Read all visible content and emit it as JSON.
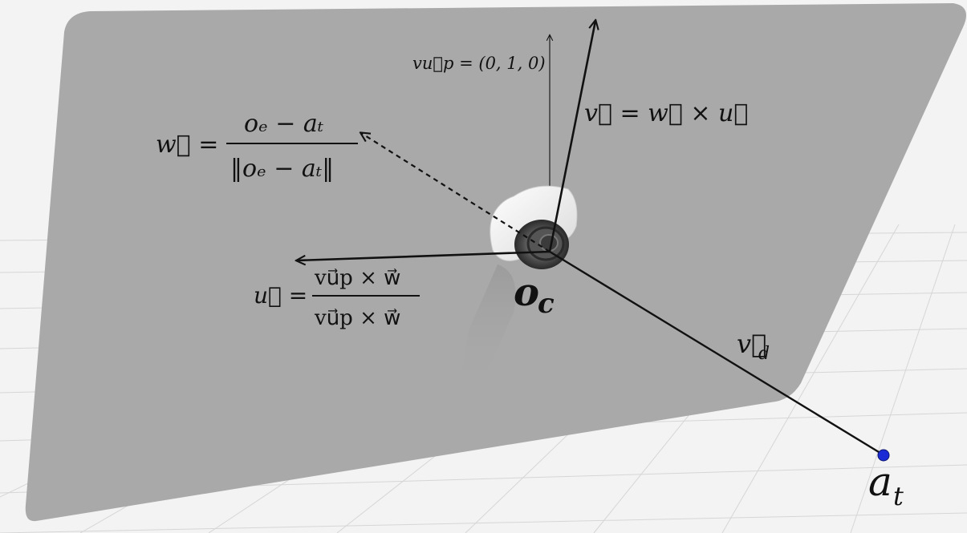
{
  "colors": {
    "floor": "#f3f3f3",
    "grid": "#d8d8d8",
    "plane": "#a9a9a9",
    "vector": "#111111",
    "target_point": "#1a2bd6"
  },
  "labels": {
    "vup": "vu⃗p = (0, 1, 0)",
    "v": "v⃗ = w⃗ × u⃗",
    "w_lhs": "w⃗ =",
    "w_num": "oₑ − aₜ",
    "w_den": "‖oₑ − aₜ‖",
    "u_lhs": "u⃗ =",
    "u_num": "vu⃗p × w⃗",
    "u_den": "vu⃗p × w⃗",
    "oc_base": "o",
    "oc_sub": "c",
    "vd_base": "v⃗",
    "vd_sub": "d",
    "at_base": "a",
    "at_sub": "t"
  },
  "icons": {
    "camera": "camera-icon",
    "target": "target-point-icon"
  }
}
